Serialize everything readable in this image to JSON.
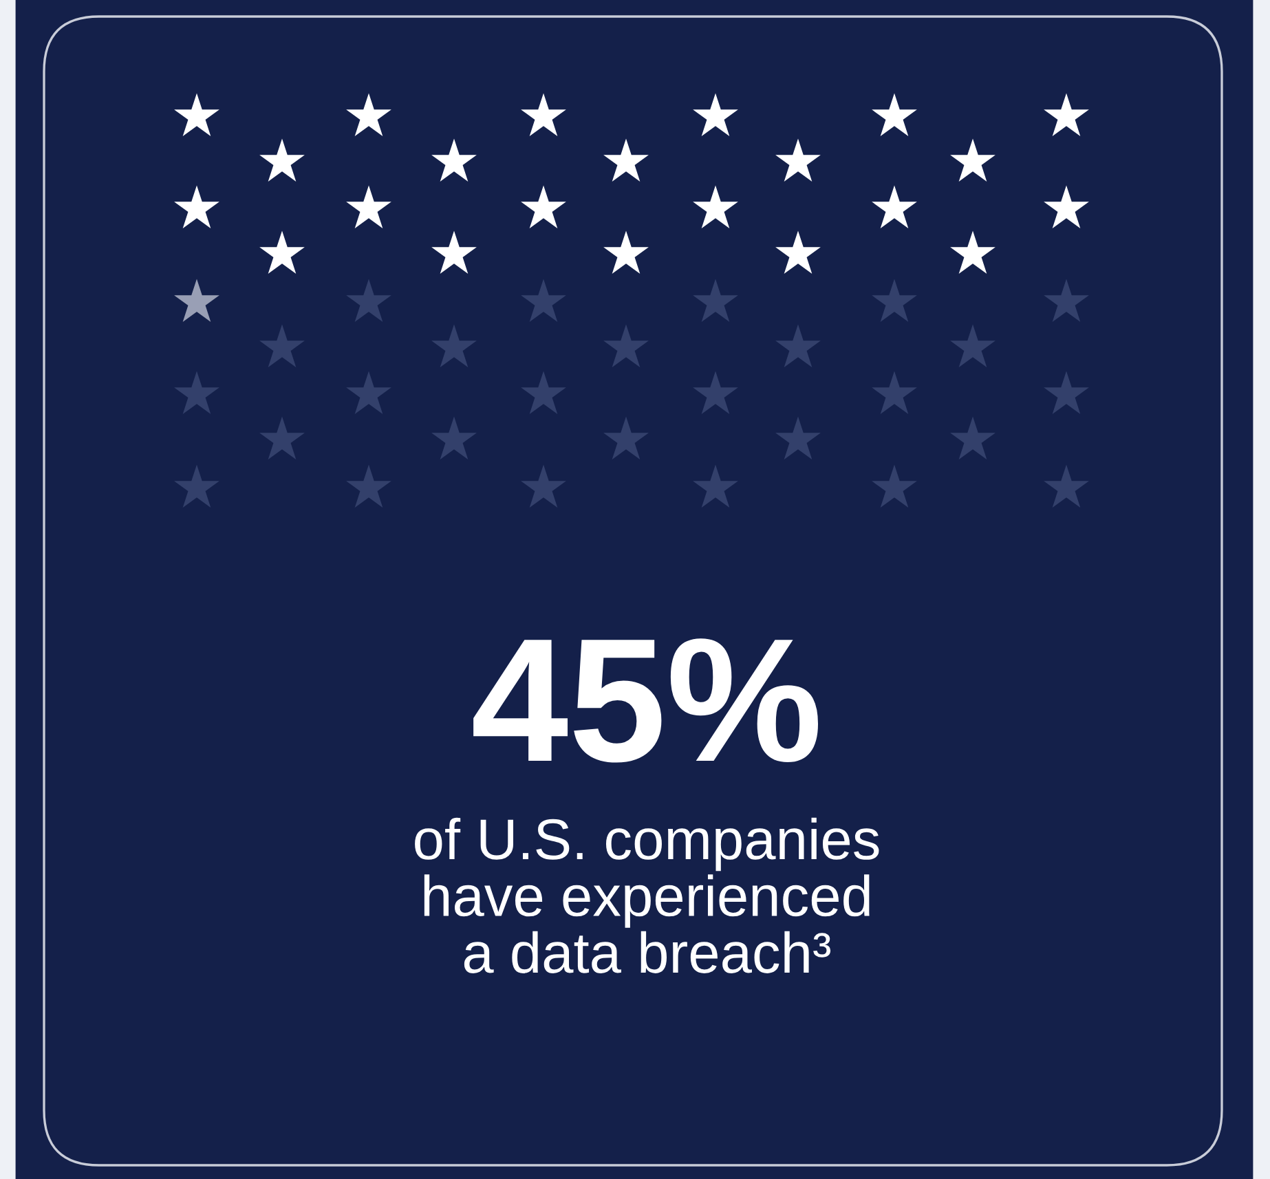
{
  "chart_data": {
    "type": "other",
    "values": [
      45
    ],
    "value_labels": [
      "45%"
    ],
    "annotations": [
      "of U.S. companies\nhave experienced\na data breach³"
    ]
  }
}
